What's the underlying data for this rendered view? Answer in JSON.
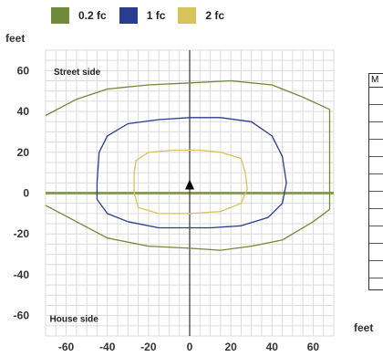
{
  "chart_data": {
    "type": "line",
    "title": "",
    "xlabel": "feet",
    "ylabel": "feet",
    "xlim": [
      -70,
      70
    ],
    "ylim": [
      -70,
      70
    ],
    "x_ticks": [
      -60,
      -40,
      -20,
      0,
      20,
      40,
      60
    ],
    "y_ticks": [
      60,
      40,
      20,
      0,
      -20,
      -40,
      -60
    ],
    "grid": true,
    "legend_position": "top",
    "series": [
      {
        "name": "0.2 fc",
        "color": "#6f8a3a",
        "closed": false,
        "points": [
          [
            -70,
            38
          ],
          [
            -55,
            46
          ],
          [
            -40,
            51
          ],
          [
            -20,
            53
          ],
          [
            0,
            54
          ],
          [
            20,
            55
          ],
          [
            40,
            53
          ],
          [
            55,
            47
          ],
          [
            68,
            41
          ],
          [
            68,
            -8
          ],
          [
            60,
            -14
          ],
          [
            45,
            -23
          ],
          [
            30,
            -26
          ],
          [
            15,
            -28
          ],
          [
            0,
            -27
          ],
          [
            -20,
            -26
          ],
          [
            -40,
            -22
          ],
          [
            -55,
            -14
          ],
          [
            -70,
            -6
          ]
        ]
      },
      {
        "name": "1 fc",
        "color": "#2b3d8f",
        "closed": true,
        "points": [
          [
            -45,
            5
          ],
          [
            -44,
            20
          ],
          [
            -40,
            28
          ],
          [
            -30,
            34
          ],
          [
            -15,
            36
          ],
          [
            0,
            37
          ],
          [
            15,
            37
          ],
          [
            30,
            35
          ],
          [
            40,
            28
          ],
          [
            45,
            18
          ],
          [
            47,
            5
          ],
          [
            45,
            -5
          ],
          [
            38,
            -12
          ],
          [
            25,
            -16
          ],
          [
            10,
            -17
          ],
          [
            0,
            -17
          ],
          [
            -15,
            -17
          ],
          [
            -30,
            -14
          ],
          [
            -40,
            -10
          ],
          [
            -45,
            -3
          ]
        ]
      },
      {
        "name": "2 fc",
        "color": "#d8c25a",
        "closed": true,
        "points": [
          [
            -27,
            10
          ],
          [
            -26,
            16
          ],
          [
            -20,
            20
          ],
          [
            -8,
            21
          ],
          [
            5,
            21
          ],
          [
            15,
            20
          ],
          [
            25,
            17
          ],
          [
            27,
            10
          ],
          [
            28,
            2
          ],
          [
            25,
            -5
          ],
          [
            15,
            -9
          ],
          [
            0,
            -10
          ],
          [
            -15,
            -10
          ],
          [
            -25,
            -7
          ],
          [
            -27,
            0
          ]
        ]
      }
    ],
    "annotations": [
      {
        "text": "Street side",
        "x": -66,
        "y": 58
      },
      {
        "text": "House side",
        "x": -68,
        "y": -63
      }
    ],
    "marker": {
      "x": 0,
      "y": 4,
      "shape": "triangle",
      "color": "#000000"
    },
    "reference_line": {
      "y": 0,
      "color": "#8a9a6a"
    }
  },
  "side_panel": {
    "header": "M",
    "unit": "feet"
  }
}
